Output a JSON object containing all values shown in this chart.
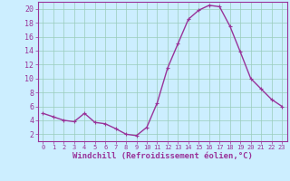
{
  "x": [
    0,
    1,
    2,
    3,
    4,
    5,
    6,
    7,
    8,
    9,
    10,
    11,
    12,
    13,
    14,
    15,
    16,
    17,
    18,
    19,
    20,
    21,
    22,
    23
  ],
  "y": [
    5.0,
    4.5,
    4.0,
    3.8,
    5.0,
    3.7,
    3.5,
    2.8,
    2.0,
    1.8,
    3.0,
    6.5,
    11.5,
    15.0,
    18.5,
    19.8,
    20.5,
    20.3,
    17.5,
    13.8,
    10.0,
    8.5,
    7.0,
    6.0
  ],
  "line_color": "#993399",
  "marker": "+",
  "bg_color": "#cceeff",
  "grid_color": "#99ccbb",
  "xlabel": "Windchill (Refroidissement éolien,°C)",
  "xlabel_color": "#993399",
  "tick_color": "#993399",
  "axis_color": "#993399",
  "ylim": [
    1,
    21
  ],
  "yticks": [
    2,
    4,
    6,
    8,
    10,
    12,
    14,
    16,
    18,
    20
  ],
  "xlim": [
    -0.5,
    23.5
  ],
  "xticks": [
    0,
    1,
    2,
    3,
    4,
    5,
    6,
    7,
    8,
    9,
    10,
    11,
    12,
    13,
    14,
    15,
    16,
    17,
    18,
    19,
    20,
    21,
    22,
    23
  ],
  "xtick_fontsize": 5.0,
  "ytick_fontsize": 6.0,
  "xlabel_fontsize": 6.5,
  "xlabel_fontweight": "bold",
  "linewidth": 1.0,
  "markersize": 3.5,
  "markeredgewidth": 0.8
}
